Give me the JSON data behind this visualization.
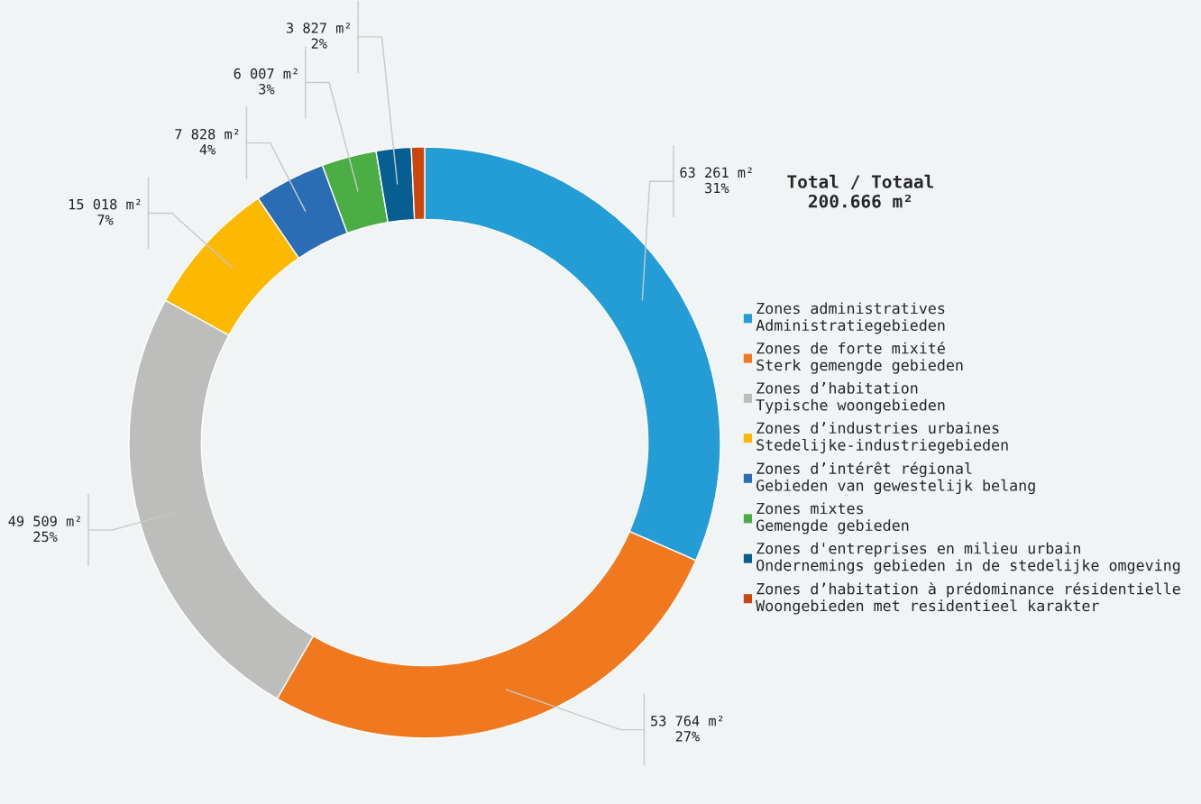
{
  "chart_data": {
    "type": "donut",
    "categories": [
      "Zones administratives\nAdministratiegebieden",
      "Zones de forte mixité\nSterk gemengde gebieden",
      "Zones d’habitation\nTypische woongebieden",
      "Zones d’industries urbaines\nStedelijke-industriegebieden",
      "Zones d’intérêt régional\nGebieden van gewestelijk belang",
      "Zones mixtes\nGemengde gebieden",
      "Zones d'entreprises en milieu urbain\nOndernemings gebieden in de stedelijke omgeving",
      "Zones d’habitation à prédominance résidentielle\nWoongebieden met residentieel karakter"
    ],
    "values": [
      63261,
      53764,
      49509,
      15018,
      7828,
      6007,
      3827,
      1452
    ],
    "colors": [
      "#249dd6",
      "#f0781f",
      "#bdbdbc",
      "#fdb800",
      "#2a6db5",
      "#4aae44",
      "#075e90",
      "#c9470e"
    ],
    "value_labels": [
      "63 261 m²\n31%",
      "53 764 m²\n27%",
      "49 509 m²\n25%",
      "15 018 m²\n7%",
      "7 828 m²\n4%",
      "6 007 m²\n3%",
      "3 827 m²\n2%",
      null
    ],
    "annotations": [
      "Total / Totaal\n200.666 m²"
    ],
    "legend": "right"
  }
}
